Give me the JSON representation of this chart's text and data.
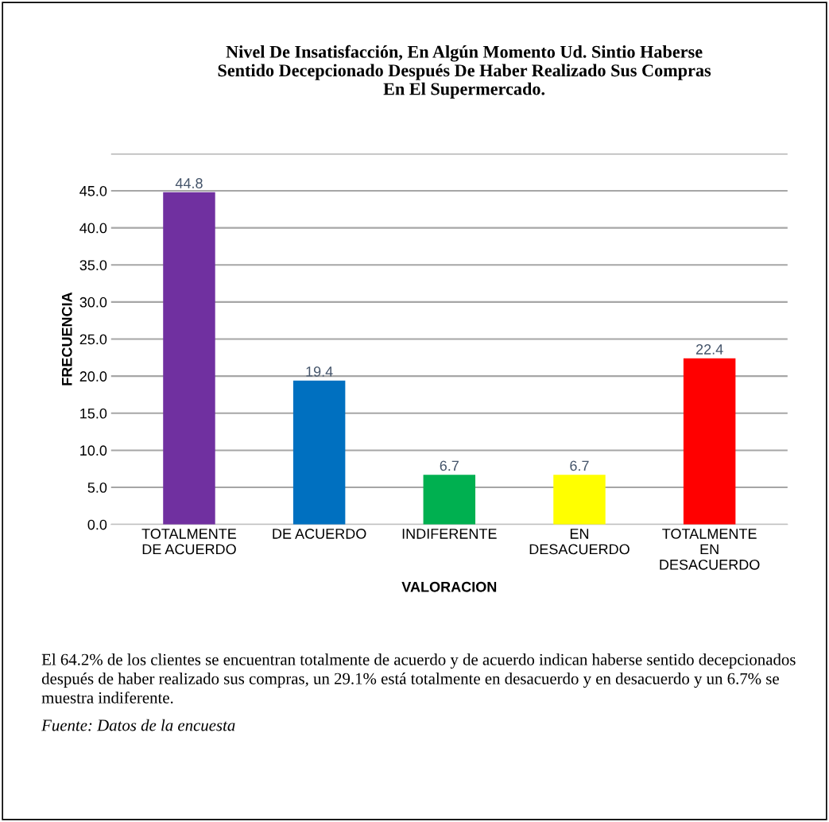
{
  "chart_data": {
    "type": "bar",
    "title": "Nivel De Insatisfacción, En Algún Momento Ud. Sintio Haberse\nSentido Decepcionado Después De Haber Realizado Sus Compras\nEn El Supermercado.",
    "xlabel": "VALORACION",
    "ylabel": "FRECUENCIA",
    "categories": [
      "TOTALMENTE\nDE ACUERDO",
      "DE ACUERDO",
      "INDIFERENTE",
      "EN\nDESACUERDO",
      "TOTALMENTE\nEN\nDESACUERDO"
    ],
    "values": [
      44.8,
      19.4,
      6.7,
      6.7,
      22.4
    ],
    "colors": [
      "#7030a0",
      "#0070c0",
      "#00b050",
      "#ffff00",
      "#ff0000"
    ],
    "ylim": [
      0,
      50
    ],
    "yticks": [
      {
        "value": 0,
        "label": "0.0"
      },
      {
        "value": 5,
        "label": "5.0"
      },
      {
        "value": 10,
        "label": "10.0"
      },
      {
        "value": 15,
        "label": "15.0"
      },
      {
        "value": 20,
        "label": "20.0"
      },
      {
        "value": 25,
        "label": "25.0"
      },
      {
        "value": 30,
        "label": "30.0"
      },
      {
        "value": 35,
        "label": "35.0"
      },
      {
        "value": 40,
        "label": "40.0"
      },
      {
        "value": 45,
        "label": "45.0"
      },
      {
        "value": 50,
        "label": null
      }
    ],
    "grid": "y",
    "data_labels": true,
    "legend": false,
    "annotations": [
      "El 64.2% de los clientes se encuentran totalmente de acuerdo y de acuerdo indican haberse sentido decepcionados después de haber realizado sus compras, un 29.1% está totalmente en desacuerdo y en desacuerdo y un 6.7% se muestra indiferente.",
      "Fuente: Datos de la encuesta"
    ]
  }
}
